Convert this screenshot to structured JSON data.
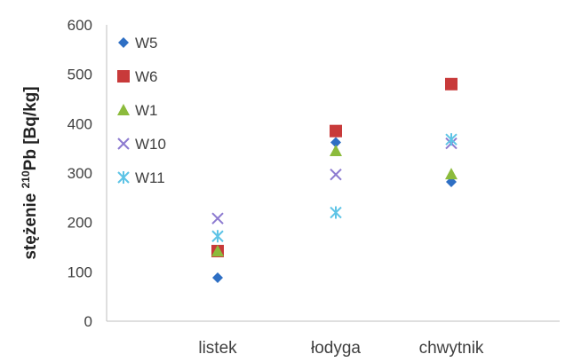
{
  "chart_data": {
    "type": "scatter",
    "ylabel_pre": "stężenie ",
    "ylabel_sup": "210",
    "ylabel_post": "Pb [Bq/kg]",
    "xlabel": "",
    "categories": [
      "listek",
      "łodyga",
      "chwytnik"
    ],
    "ylim": [
      0,
      600
    ],
    "yticks": [
      0,
      100,
      200,
      300,
      400,
      500,
      600
    ],
    "legend_position": "top-left",
    "grid": false,
    "series": [
      {
        "name": "W5",
        "marker": "diamond",
        "color": "#2e6fc4",
        "values": [
          88,
          362,
          282
        ]
      },
      {
        "name": "W6",
        "marker": "square",
        "color": "#c83a3a",
        "values": [
          142,
          385,
          480
        ]
      },
      {
        "name": "W1",
        "marker": "triangle",
        "color": "#8cbb3c",
        "values": [
          142,
          345,
          298
        ]
      },
      {
        "name": "W10",
        "marker": "x",
        "color": "#8c7ad0",
        "values": [
          208,
          297,
          360
        ]
      },
      {
        "name": "W11",
        "marker": "star",
        "color": "#5ec4e6",
        "values": [
          172,
          220,
          368
        ]
      }
    ]
  }
}
